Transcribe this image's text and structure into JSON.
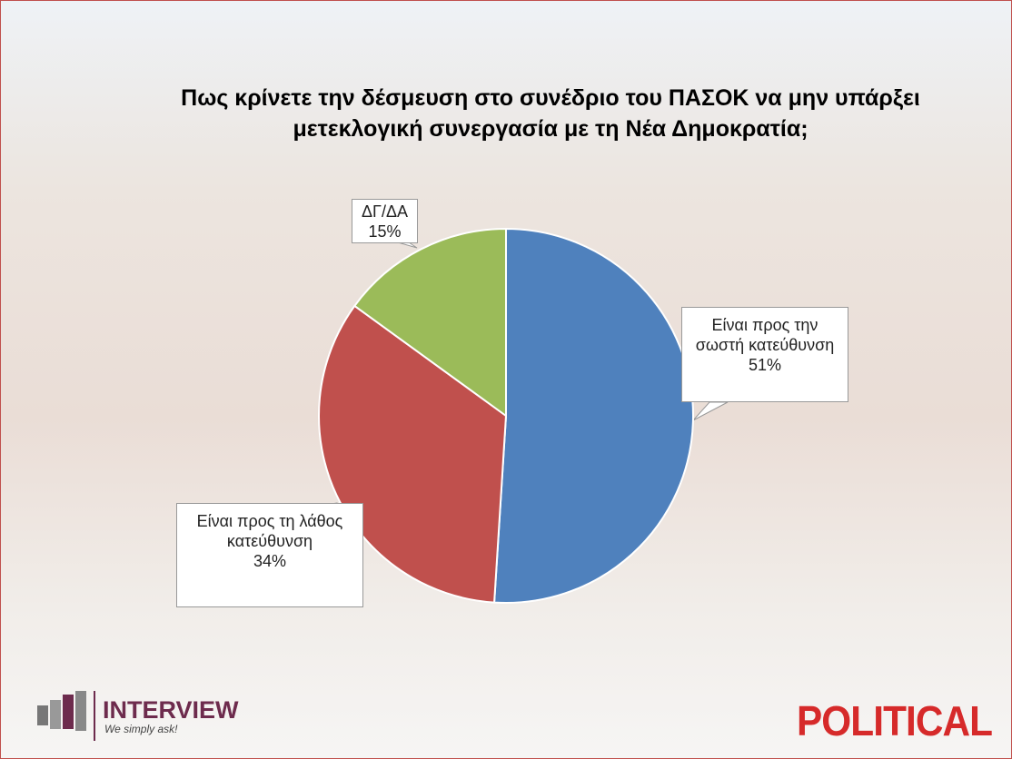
{
  "chart_data": {
    "type": "pie",
    "title": "Πως κρίνετε την δέσμευση στο συνέδριο του ΠΑΣΟΚ να μην υπάρξει μετεκλογική συνεργασία με τη Νέα Δημοκρατία;",
    "categories": [
      "Είναι προς την σωστή κατεύθυνση",
      "Είναι προς τη λάθος κατεύθυνση",
      "ΔΓ/ΔΑ"
    ],
    "values": [
      51,
      34,
      15
    ],
    "value_labels": [
      "51%",
      "34%",
      "15%"
    ],
    "colors": [
      "#4f81bd",
      "#c0504d",
      "#9bbb59"
    ]
  },
  "branding": {
    "left_logo": "INTERVIEW",
    "tagline": "We simply ask!",
    "right_logo": "POLITICAL"
  }
}
